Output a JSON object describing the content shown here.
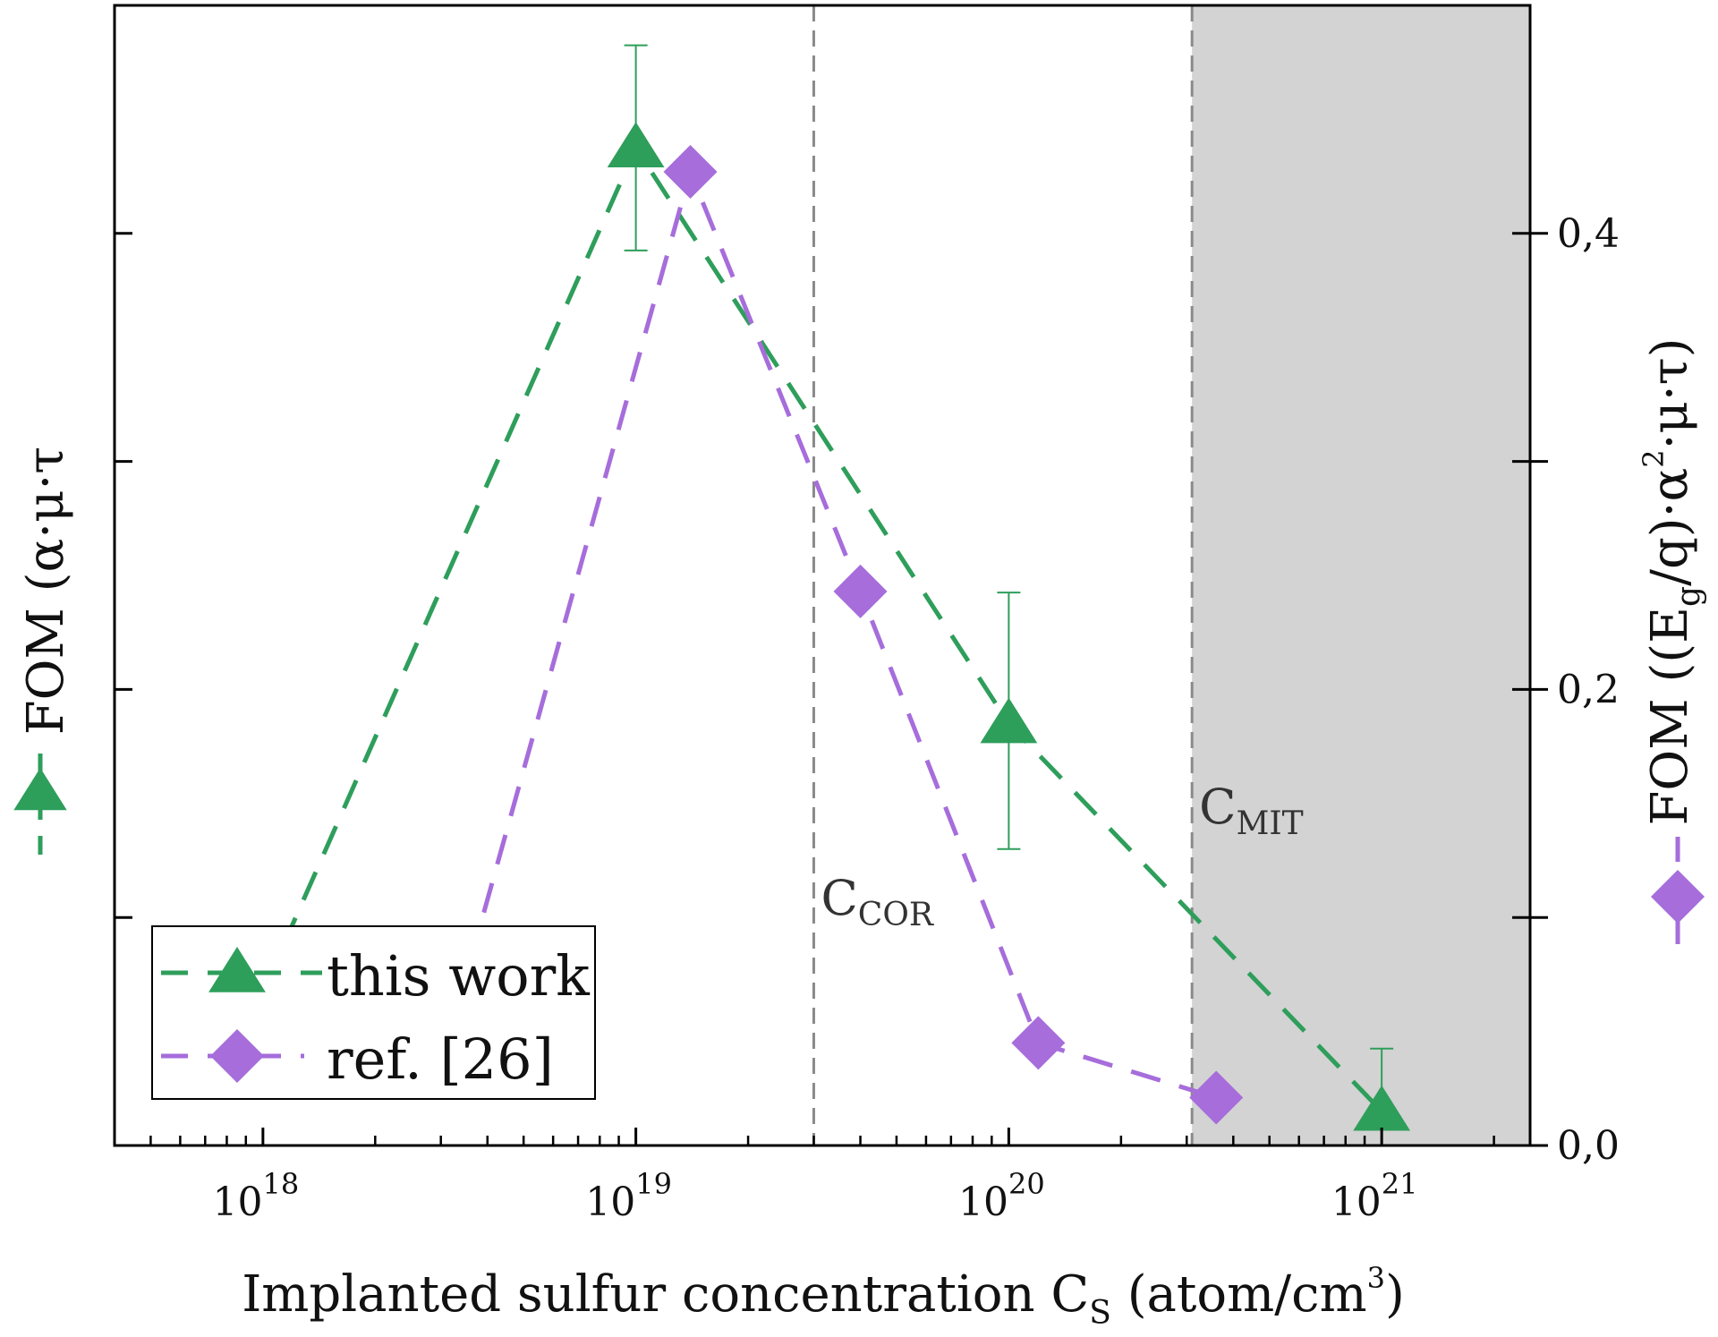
{
  "chart_data": {
    "type": "scatter",
    "x_scale": "log",
    "xlim": [
      4e+17,
      2.5e+21
    ],
    "x_ticks": [
      {
        "value": 1e+18,
        "base": "10",
        "exp": "18"
      },
      {
        "value": 1e+19,
        "base": "10",
        "exp": "19"
      },
      {
        "value": 1e+20,
        "base": "10",
        "exp": "20"
      },
      {
        "value": 1e+21,
        "base": "10",
        "exp": "21"
      }
    ],
    "xlabel": {
      "main": "Implanted sulfur concentration C",
      "sub": "S",
      "unit_open": " (atom/cm",
      "sup": "3",
      "unit_close": ")"
    },
    "left_axis": {
      "label": "FOM (α·μ·τ",
      "ylim": [
        0,
        1
      ],
      "ticks": [
        0.2,
        0.4,
        0.6,
        0.8
      ]
    },
    "right_axis": {
      "label_parts": {
        "a": "FOM ((E",
        "sub": "g",
        "b": "/q)·α",
        "sup": "2",
        "c": "·μ·τ)"
      },
      "ylim": [
        0,
        0.5
      ],
      "ticks": [
        {
          "value": 0.0,
          "label": "0,0"
        },
        {
          "value": 0.1,
          "label": ""
        },
        {
          "value": 0.2,
          "label": "0,2"
        },
        {
          "value": 0.3,
          "label": ""
        },
        {
          "value": 0.4,
          "label": "0,4"
        }
      ]
    },
    "series": [
      {
        "name": "this work",
        "axis": "left",
        "marker": "triangle",
        "color": "#2e9e5b",
        "points": [
          {
            "x": 1e+18,
            "y": 0.135,
            "err_low": 0.035,
            "err_high": 0.035
          },
          {
            "x": 1e+19,
            "y": 0.875,
            "err_low": 0.09,
            "err_high": 0.09
          },
          {
            "x": 1e+20,
            "y": 0.37,
            "err_low": 0.11,
            "err_high": 0.115
          },
          {
            "x": 1e+21,
            "y": 0.03,
            "err_low": 0.03,
            "err_high": 0.055
          }
        ]
      },
      {
        "name": "ref. [26]",
        "axis": "right",
        "marker": "diamond",
        "color": "#a66ddb",
        "points": [
          {
            "x": 3.6e+18,
            "y": 0.081
          },
          {
            "x": 1.4e+19,
            "y": 0.427
          },
          {
            "x": 4e+19,
            "y": 0.243
          },
          {
            "x": 1.2e+20,
            "y": 0.045
          },
          {
            "x": 3.6e+20,
            "y": 0.021
          }
        ]
      }
    ],
    "vertical_lines": [
      {
        "x": 3e+19,
        "label_main": "C",
        "label_sub": "COR"
      },
      {
        "x": 3.1e+20,
        "label_main": "C",
        "label_sub": "MIT"
      }
    ],
    "shaded_region": {
      "x_from": 3.1e+20,
      "x_to": 2.5e+21,
      "color": "#d3d3d3"
    },
    "legend": {
      "position": "bottom-left",
      "entries": [
        "this work",
        "ref. [26]"
      ]
    }
  }
}
